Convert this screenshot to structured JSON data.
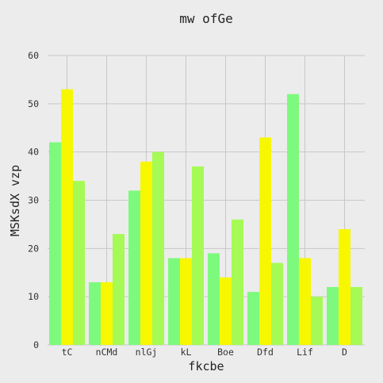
{
  "chart_data": {
    "type": "bar",
    "title": "mw ofGe",
    "xlabel": "fkcbe",
    "ylabel": "MSKsdX vzp",
    "ylim": [
      0,
      60
    ],
    "yticks": [
      0,
      10,
      20,
      30,
      40,
      50,
      60
    ],
    "grid": true,
    "categories": [
      "tC",
      "nCMd",
      "nlGj",
      "kL",
      "Boe",
      "Dfd",
      "Lif",
      "D"
    ],
    "series": [
      {
        "color": "#7dfa7d",
        "values": [
          42,
          13,
          32,
          18,
          19,
          11,
          52,
          12
        ]
      },
      {
        "color": "#f7f700",
        "values": [
          53,
          13,
          38,
          18,
          14,
          43,
          18,
          24
        ]
      },
      {
        "color": "#a6fa55",
        "values": [
          34,
          23,
          40,
          37,
          26,
          17,
          10,
          12
        ]
      }
    ]
  }
}
